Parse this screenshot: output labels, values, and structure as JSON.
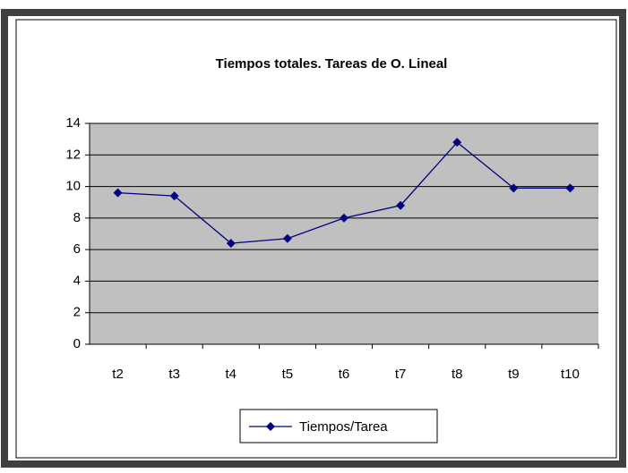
{
  "chart_data": {
    "type": "line",
    "title": "Tiempos totales. Tareas de O. Lineal",
    "categories": [
      "t2",
      "t3",
      "t4",
      "t5",
      "t6",
      "t7",
      "t8",
      "t9",
      "t10"
    ],
    "series": [
      {
        "name": "Tiempos/Tarea",
        "color": "#000080",
        "values": [
          9.6,
          9.4,
          6.4,
          6.7,
          8.0,
          8.8,
          12.8,
          9.9,
          9.9
        ]
      }
    ],
    "ylim": [
      0,
      14
    ],
    "yticks": [
      0,
      2,
      4,
      6,
      8,
      10,
      12,
      14
    ],
    "grid": true,
    "legend": "bottom"
  }
}
